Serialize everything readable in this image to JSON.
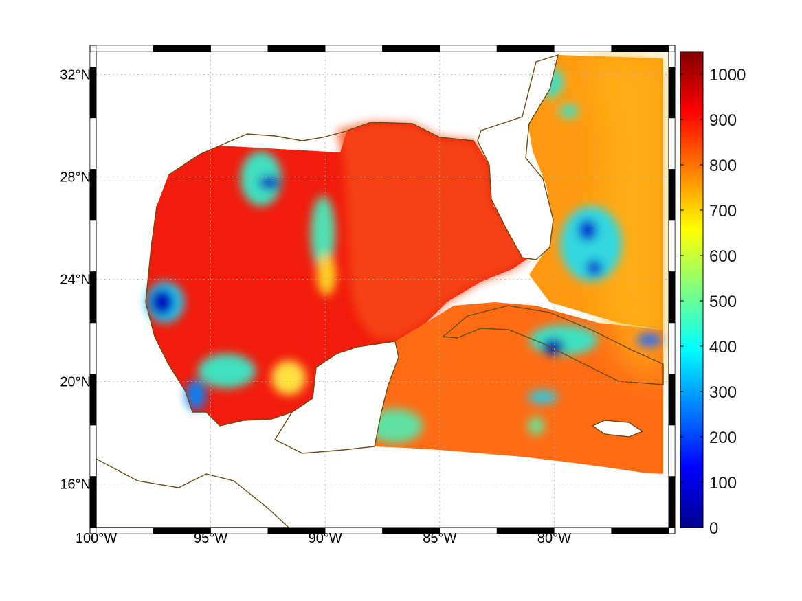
{
  "map": {
    "projection": "equidistant-cylindrical",
    "lon_range": [
      -100,
      -75
    ],
    "lat_range": [
      14.3,
      32.9
    ],
    "grid": true,
    "frame_style": "black-white-checkered",
    "longitude_ticks": [
      {
        "value": -100,
        "label": "100°W"
      },
      {
        "value": -95,
        "label": "95°W"
      },
      {
        "value": -90,
        "label": "90°W"
      },
      {
        "value": -85,
        "label": "85°W"
      },
      {
        "value": -80,
        "label": "80°W"
      }
    ],
    "latitude_ticks": [
      {
        "value": 16,
        "label": "16°N"
      },
      {
        "value": 20,
        "label": "20°N"
      },
      {
        "value": 24,
        "label": "24°N"
      },
      {
        "value": 28,
        "label": "28°N"
      },
      {
        "value": 32,
        "label": "32°N"
      }
    ],
    "coastline_color": "#6b4a10",
    "data_region_note_color": "#ff2a10"
  },
  "colorbar": {
    "colormap": "jet",
    "range": [
      0,
      1050
    ],
    "ticks": [
      {
        "value": 0,
        "label": "0"
      },
      {
        "value": 100,
        "label": "100"
      },
      {
        "value": 200,
        "label": "200"
      },
      {
        "value": 300,
        "label": "300"
      },
      {
        "value": 400,
        "label": "400"
      },
      {
        "value": 500,
        "label": "500"
      },
      {
        "value": 600,
        "label": "600"
      },
      {
        "value": 700,
        "label": "700"
      },
      {
        "value": 800,
        "label": "800"
      },
      {
        "value": 900,
        "label": "900"
      },
      {
        "value": 1000,
        "label": "1000"
      }
    ]
  }
}
